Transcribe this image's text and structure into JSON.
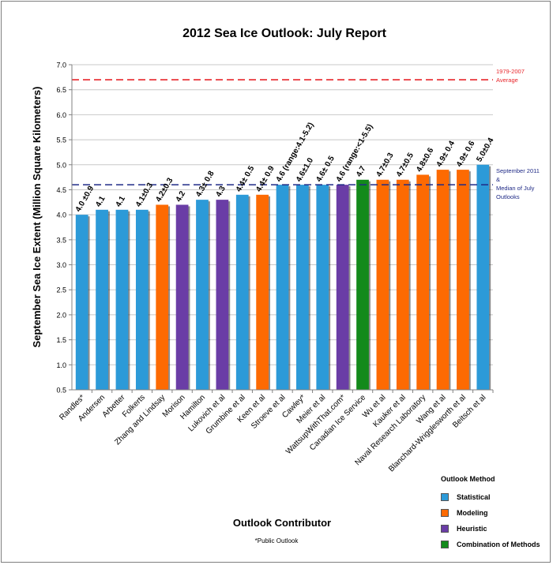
{
  "chart_data": {
    "type": "bar",
    "title": "2012 Sea Ice Outlook: July Report",
    "xlabel": "Outlook Contributor",
    "ylabel": "September Sea Ice Extent (Million Square Kilometers)",
    "ylim": [
      0.5,
      7.0
    ],
    "y_ticks": [
      "0.5",
      "1.0",
      "1.5",
      "2.0",
      "2.5",
      "3.0",
      "3.5",
      "4.0",
      "4.5",
      "5.0",
      "5.5",
      "6.0",
      "6.5",
      "7.0"
    ],
    "footnote": "*Public Outlook",
    "categories": [
      "Randles*",
      "Andersen",
      "Arbetter",
      "Folkerts",
      "Zhang and Lindsay",
      "Morison",
      "Hamilton",
      "Lukovich et al",
      "Grumbine et al",
      "Keen et al",
      "Stroeve et al",
      "Cawley*",
      "Meier et al",
      "WattsupWithThat.com*",
      "Canadian Ice Service",
      "Wu et al",
      "Kauker et al",
      "Naval Research Laboratory",
      "Wang et al",
      "Blanchard-Wrigglesworth et al",
      "Beitsch et al"
    ],
    "values": [
      4.0,
      4.1,
      4.1,
      4.1,
      4.2,
      4.2,
      4.3,
      4.3,
      4.4,
      4.4,
      4.6,
      4.6,
      4.6,
      4.6,
      4.7,
      4.7,
      4.7,
      4.8,
      4.9,
      4.9,
      5.0
    ],
    "methods": [
      "Statistical",
      "Statistical",
      "Statistical",
      "Statistical",
      "Modeling",
      "Heuristic",
      "Statistical",
      "Heuristic",
      "Statistical",
      "Modeling",
      "Statistical",
      "Statistical",
      "Statistical",
      "Heuristic",
      "Combination of Methods",
      "Modeling",
      "Modeling",
      "Modeling",
      "Modeling",
      "Modeling",
      "Statistical"
    ],
    "data_labels": [
      "4.0 ±0.9",
      "4.1",
      "4.1",
      "4.1±0.3",
      "4.2±0.3",
      "4.2",
      "4.3± 0.8",
      "4.3",
      "4.4± 0.5",
      "4.4± 0.9",
      "4.6 (range:4.1-5.2)",
      "4.6±1.0",
      "4.6± 0.5",
      "4.6 (range:<1-5.5)",
      "4.7",
      "4.7±0.3",
      "4.7±0.5",
      "4.8±0.6",
      "4.9± 0.4",
      "4.9± 0.6",
      "5.0±0.4"
    ],
    "reference_lines": [
      {
        "value": 6.7,
        "label_lines": [
          "1979-2007",
          "Average"
        ],
        "color": "#e8262b"
      },
      {
        "value": 4.6,
        "label_lines": [
          "September 2011",
          "&",
          "Median of July",
          "Outlooks"
        ],
        "color": "#1f2a86"
      }
    ],
    "legend": {
      "title": "Outlook Method",
      "placement": "bottom-right",
      "entries": [
        {
          "name": "Statistical",
          "color": "#2c9ad8"
        },
        {
          "name": "Modeling",
          "color": "#fd6a02"
        },
        {
          "name": "Heuristic",
          "color": "#6a3da6"
        },
        {
          "name": "Combination of Methods",
          "color": "#138a1b"
        }
      ]
    },
    "grid": true
  }
}
